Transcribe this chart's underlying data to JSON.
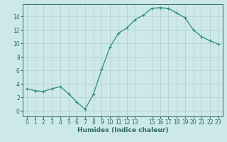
{
  "x": [
    0,
    1,
    2,
    3,
    4,
    5,
    6,
    7,
    8,
    9,
    10,
    11,
    12,
    13,
    14,
    15,
    16,
    17,
    18,
    19,
    20,
    21,
    22,
    23
  ],
  "y": [
    3.3,
    3.0,
    2.9,
    3.3,
    3.6,
    2.6,
    1.3,
    0.3,
    2.5,
    6.2,
    9.5,
    11.5,
    12.3,
    13.5,
    14.2,
    15.2,
    15.3,
    15.2,
    14.5,
    13.8,
    12.0,
    11.0,
    10.4,
    9.9
  ],
  "line_color": "#2e8b72",
  "marker": "+",
  "marker_color": "#2e8b72",
  "bg_color": "#cce8e8",
  "grid_color": "#b0cccc",
  "axis_color": "#2e6b60",
  "xlabel": "Humidex (Indice chaleur)",
  "xlim": [
    -0.5,
    23.5
  ],
  "ylim": [
    -0.8,
    15.8
  ],
  "yticks": [
    0,
    2,
    4,
    6,
    8,
    10,
    12,
    14
  ],
  "xtick_positions": [
    0,
    1,
    2,
    3,
    4,
    5,
    6,
    7,
    8,
    9,
    10,
    11,
    12,
    13,
    15,
    16,
    17,
    18,
    19,
    20,
    21,
    22,
    23
  ],
  "xtick_labels": [
    "0",
    "1",
    "2",
    "3",
    "4",
    "5",
    "6",
    "7",
    "8",
    "9",
    "10",
    "11",
    "12",
    "13",
    "15",
    "16",
    "17",
    "18",
    "19",
    "20",
    "21",
    "22",
    "23"
  ],
  "fontsize_label": 6.5,
  "fontsize_tick": 5.5,
  "linewidth": 0.9,
  "markersize": 3.5
}
